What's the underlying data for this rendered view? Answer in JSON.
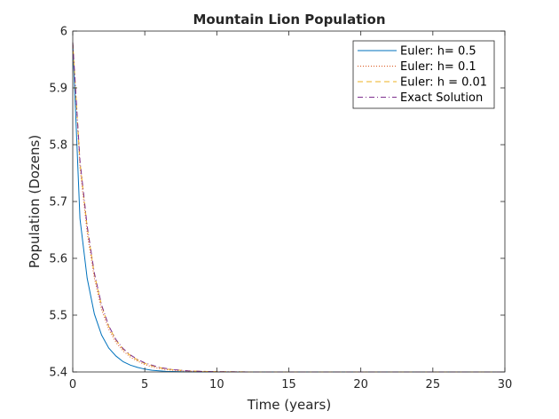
{
  "chart_data": {
    "type": "line",
    "title": "Mountain Lion Population",
    "xlabel": "Time (years)",
    "ylabel": "Population (Dozens)",
    "xlim": [
      0,
      30
    ],
    "ylim": [
      5.4,
      6.0
    ],
    "xticks": [
      "0",
      "5",
      "10",
      "15",
      "20",
      "25",
      "30"
    ],
    "yticks": [
      "5.4",
      "5.5",
      "5.6",
      "5.7",
      "5.8",
      "5.9",
      "6"
    ],
    "grid": false,
    "legend_position": "top-right",
    "series": [
      {
        "name": "Euler: h= 0.5",
        "color": "#0072BD",
        "style": "solid",
        "x": [
          0,
          0.5,
          1,
          1.5,
          2,
          2.5,
          3,
          3.5,
          4,
          4.5,
          5,
          5.5,
          6,
          6.5,
          7,
          7.5,
          8,
          9,
          10,
          12,
          15,
          20,
          25,
          30
        ],
        "y": [
          5.98,
          5.67,
          5.565,
          5.502,
          5.465,
          5.442,
          5.428,
          5.418,
          5.412,
          5.408,
          5.405,
          5.403,
          5.402,
          5.401,
          5.4007,
          5.4004,
          5.4002,
          5.4001,
          5.40005,
          5.4,
          5.4,
          5.4,
          5.4,
          5.4
        ]
      },
      {
        "name": "Euler: h= 0.1",
        "color": "#D95319",
        "style": "dotted",
        "x": [
          0,
          0.5,
          1,
          1.5,
          2,
          2.5,
          3,
          3.5,
          4,
          4.5,
          5,
          5.5,
          6,
          6.5,
          7,
          7.5,
          8,
          9,
          10,
          12,
          15,
          20,
          25,
          30
        ],
        "y": [
          5.98,
          5.76,
          5.645,
          5.565,
          5.51,
          5.475,
          5.452,
          5.437,
          5.426,
          5.419,
          5.413,
          5.409,
          5.406,
          5.404,
          5.403,
          5.402,
          5.4015,
          5.4008,
          5.4004,
          5.4001,
          5.4,
          5.4,
          5.4,
          5.4
        ]
      },
      {
        "name": "Euler: h = 0.01",
        "color": "#EDB120",
        "style": "dashed",
        "x": [
          0,
          0.5,
          1,
          1.5,
          2,
          2.5,
          3,
          3.5,
          4,
          4.5,
          5,
          5.5,
          6,
          6.5,
          7,
          7.5,
          8,
          9,
          10,
          12,
          15,
          20,
          25,
          30
        ],
        "y": [
          5.98,
          5.77,
          5.655,
          5.572,
          5.517,
          5.48,
          5.456,
          5.44,
          5.429,
          5.421,
          5.415,
          5.411,
          5.408,
          5.405,
          5.404,
          5.403,
          5.402,
          5.401,
          5.4005,
          5.4001,
          5.4,
          5.4,
          5.4,
          5.4
        ]
      },
      {
        "name": "Exact Solution",
        "color": "#7E2F8E",
        "style": "dashdot",
        "x": [
          0,
          0.5,
          1,
          1.5,
          2,
          2.5,
          3,
          3.5,
          4,
          4.5,
          5,
          5.5,
          6,
          6.5,
          7,
          7.5,
          8,
          9,
          10,
          12,
          15,
          20,
          25,
          30
        ],
        "y": [
          5.98,
          5.772,
          5.657,
          5.574,
          5.518,
          5.481,
          5.457,
          5.441,
          5.43,
          5.422,
          5.416,
          5.412,
          5.408,
          5.406,
          5.404,
          5.403,
          5.402,
          5.401,
          5.4005,
          5.4001,
          5.4,
          5.4,
          5.4,
          5.4
        ]
      }
    ]
  }
}
